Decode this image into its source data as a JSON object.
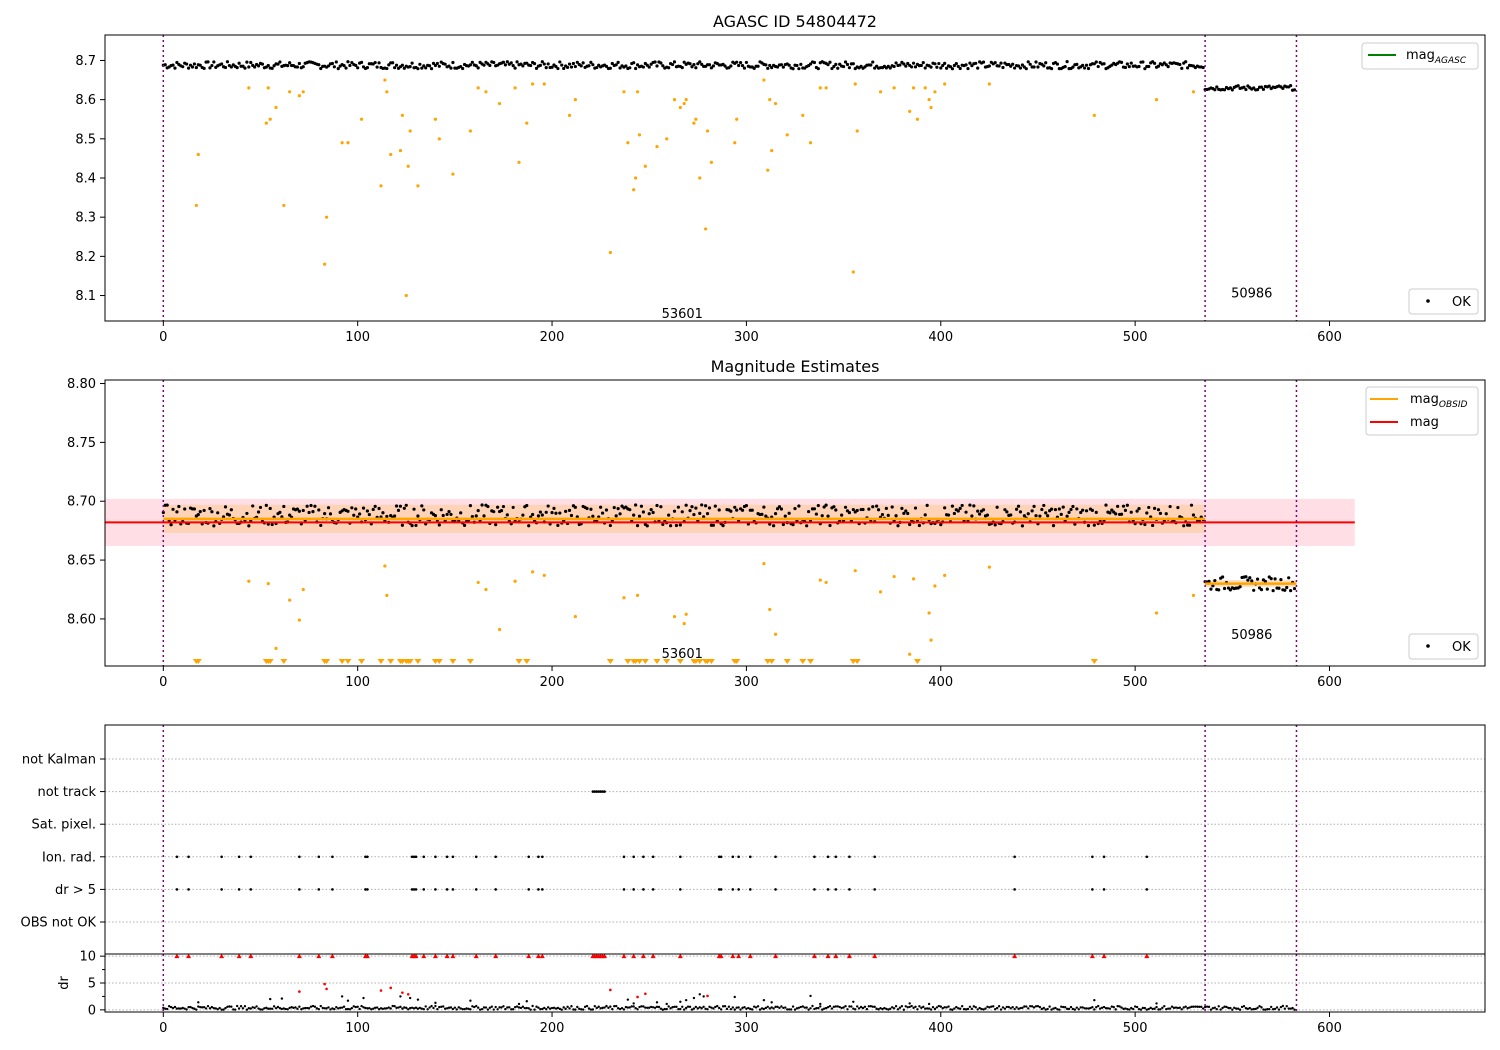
{
  "colors": {
    "ok_points": "#000000",
    "flagged_points": "#ffa500",
    "mag_agasc": "#008000",
    "mag": "#ff0000",
    "mag_obsid": "#ffa500",
    "obs_boundary": "#800080",
    "dr_flag": "#ff0000",
    "band_mag": "#ffc0cb",
    "band_obsid": "#ffcc99"
  },
  "chart_data": [
    {
      "type": "scatter",
      "title": "AGASC ID 54804472",
      "xlabel": "",
      "ylabel": "",
      "xlim": [
        -30,
        680
      ],
      "ylim": [
        8.035,
        8.765
      ],
      "xticks": [
        0,
        100,
        200,
        300,
        400,
        500,
        600
      ],
      "yticks": [
        8.1,
        8.2,
        8.3,
        8.4,
        8.5,
        8.6,
        8.7
      ],
      "grid": false,
      "legend": [
        {
          "label_main": "mag",
          "label_sub": "AGASC",
          "kind": "line",
          "color": "#008000",
          "placement": "upper right"
        },
        {
          "label_main": "OK",
          "label_sub": "",
          "kind": "point",
          "color": "#000000",
          "placement": "lower right"
        }
      ],
      "obs_boundaries": [
        0,
        536,
        583
      ],
      "obs_labels": [
        {
          "text": "53601",
          "x": 267,
          "y": 8.055
        },
        {
          "text": "50986",
          "x": 560,
          "y": 8.108
        }
      ],
      "series": [
        {
          "role": "ok",
          "segments": [
            {
              "x_start": 0,
              "x_end": 535,
              "center": 8.688,
              "spread": 0.009
            },
            {
              "x_start": 536,
              "x_end": 582,
              "center": 8.63,
              "spread": 0.006
            }
          ]
        },
        {
          "role": "flagged",
          "points": [
            [
              17,
              8.33
            ],
            [
              18,
              8.46
            ],
            [
              44,
              8.63
            ],
            [
              53,
              8.54
            ],
            [
              54,
              8.63
            ],
            [
              55,
              8.55
            ],
            [
              58,
              8.58
            ],
            [
              62,
              8.33
            ],
            [
              65,
              8.62
            ],
            [
              70,
              8.61
            ],
            [
              72,
              8.62
            ],
            [
              83,
              8.18
            ],
            [
              84,
              8.3
            ],
            [
              92,
              8.49
            ],
            [
              95,
              8.49
            ],
            [
              102,
              8.55
            ],
            [
              112,
              8.38
            ],
            [
              114,
              8.65
            ],
            [
              115,
              8.62
            ],
            [
              117,
              8.46
            ],
            [
              122,
              8.47
            ],
            [
              123,
              8.56
            ],
            [
              125,
              8.1
            ],
            [
              126,
              8.43
            ],
            [
              127,
              8.52
            ],
            [
              131,
              8.38
            ],
            [
              140,
              8.55
            ],
            [
              142,
              8.5
            ],
            [
              149,
              8.41
            ],
            [
              158,
              8.52
            ],
            [
              162,
              8.63
            ],
            [
              166,
              8.62
            ],
            [
              173,
              8.59
            ],
            [
              181,
              8.63
            ],
            [
              183,
              8.44
            ],
            [
              187,
              8.54
            ],
            [
              190,
              8.64
            ],
            [
              196,
              8.64
            ],
            [
              209,
              8.56
            ],
            [
              212,
              8.6
            ],
            [
              230,
              8.21
            ],
            [
              237,
              8.62
            ],
            [
              239,
              8.49
            ],
            [
              242,
              8.37
            ],
            [
              243,
              8.4
            ],
            [
              244,
              8.62
            ],
            [
              245,
              8.51
            ],
            [
              248,
              8.43
            ],
            [
              254,
              8.48
            ],
            [
              259,
              8.5
            ],
            [
              263,
              8.6
            ],
            [
              266,
              8.58
            ],
            [
              268,
              8.59
            ],
            [
              269,
              8.6
            ],
            [
              273,
              8.54
            ],
            [
              274,
              8.55
            ],
            [
              276,
              8.4
            ],
            [
              279,
              8.27
            ],
            [
              280,
              8.52
            ],
            [
              282,
              8.44
            ],
            [
              294,
              8.49
            ],
            [
              295,
              8.55
            ],
            [
              309,
              8.65
            ],
            [
              311,
              8.42
            ],
            [
              312,
              8.6
            ],
            [
              313,
              8.47
            ],
            [
              315,
              8.59
            ],
            [
              321,
              8.51
            ],
            [
              329,
              8.56
            ],
            [
              333,
              8.49
            ],
            [
              338,
              8.63
            ],
            [
              341,
              8.63
            ],
            [
              355,
              8.16
            ],
            [
              356,
              8.64
            ],
            [
              357,
              8.52
            ],
            [
              369,
              8.62
            ],
            [
              376,
              8.63
            ],
            [
              384,
              8.57
            ],
            [
              386,
              8.63
            ],
            [
              388,
              8.55
            ],
            [
              392,
              8.63
            ],
            [
              394,
              8.6
            ],
            [
              395,
              8.58
            ],
            [
              397,
              8.62
            ],
            [
              402,
              8.64
            ],
            [
              425,
              8.64
            ],
            [
              479,
              8.56
            ],
            [
              511,
              8.6
            ],
            [
              530,
              8.62
            ]
          ]
        }
      ]
    },
    {
      "type": "scatter",
      "title": "Magnitude Estimates",
      "xlabel": "",
      "ylabel": "",
      "xlim": [
        -30,
        680
      ],
      "ylim": [
        8.56,
        8.803
      ],
      "xticks": [
        0,
        100,
        200,
        300,
        400,
        500,
        600
      ],
      "yticks": [
        8.6,
        8.65,
        8.7,
        8.75,
        8.8
      ],
      "grid": false,
      "legend": [
        {
          "label_main": "mag",
          "label_sub": "OBSID",
          "kind": "line",
          "color": "#ffa500",
          "placement": "upper right"
        },
        {
          "label_main": "mag",
          "label_sub": "",
          "kind": "line",
          "color": "#ff0000",
          "placement": "upper right"
        },
        {
          "label_main": "OK",
          "label_sub": "",
          "kind": "point",
          "color": "#000000",
          "placement": "lower right"
        }
      ],
      "obs_boundaries": [
        0,
        536,
        583
      ],
      "obs_labels": [
        {
          "text": "53601",
          "x": 267,
          "y": 8.571
        },
        {
          "text": "50986",
          "x": 560,
          "y": 8.587
        }
      ],
      "mag_line": {
        "value": 8.682,
        "x_start": -30,
        "x_end": 613,
        "band": [
          8.662,
          8.702
        ]
      },
      "obsid_lines": [
        {
          "x_start": 0,
          "x_end": 536,
          "value": 8.685,
          "band": [
            8.673,
            8.697
          ]
        },
        {
          "x_start": 536,
          "x_end": 583,
          "value": 8.63,
          "band": [
            8.627,
            8.633
          ]
        }
      ],
      "series": [
        {
          "role": "ok",
          "segments": [
            {
              "x_start": 0,
              "x_end": 535,
              "center": 8.688,
              "spread": 0.009
            },
            {
              "x_start": 536,
              "x_end": 582,
              "center": 8.63,
              "spread": 0.006
            }
          ]
        },
        {
          "role": "flagged",
          "points": [
            [
              44,
              8.632
            ],
            [
              54,
              8.63
            ],
            [
              58,
              8.575
            ],
            [
              65,
              8.616
            ],
            [
              70,
              8.599
            ],
            [
              72,
              8.625
            ],
            [
              114,
              8.645
            ],
            [
              115,
              8.62
            ],
            [
              162,
              8.631
            ],
            [
              166,
              8.625
            ],
            [
              173,
              8.591
            ],
            [
              181,
              8.632
            ],
            [
              190,
              8.64
            ],
            [
              196,
              8.637
            ],
            [
              212,
              8.602
            ],
            [
              237,
              8.618
            ],
            [
              244,
              8.62
            ],
            [
              263,
              8.602
            ],
            [
              268,
              8.596
            ],
            [
              269,
              8.604
            ],
            [
              309,
              8.647
            ],
            [
              312,
              8.608
            ],
            [
              315,
              8.587
            ],
            [
              338,
              8.633
            ],
            [
              341,
              8.631
            ],
            [
              356,
              8.641
            ],
            [
              369,
              8.623
            ],
            [
              376,
              8.636
            ],
            [
              384,
              8.57
            ],
            [
              386,
              8.634
            ],
            [
              394,
              8.605
            ],
            [
              395,
              8.582
            ],
            [
              397,
              8.628
            ],
            [
              402,
              8.637
            ],
            [
              425,
              8.644
            ],
            [
              511,
              8.605
            ],
            [
              530,
              8.62
            ]
          ]
        },
        {
          "role": "below-range",
          "x": [
            17,
            18,
            53,
            54,
            55,
            62,
            83,
            84,
            92,
            95,
            102,
            112,
            117,
            122,
            123,
            125,
            126,
            127,
            131,
            140,
            142,
            149,
            158,
            183,
            187,
            230,
            239,
            242,
            243,
            245,
            248,
            254,
            259,
            266,
            273,
            274,
            276,
            279,
            280,
            282,
            294,
            295,
            311,
            313,
            321,
            329,
            333,
            355,
            357,
            388,
            479
          ]
        }
      ]
    },
    {
      "type": "scatter",
      "title": "",
      "xlabel": "",
      "ylabel": "",
      "xlim": [
        -30,
        680
      ],
      "categories": [
        "not Kalman",
        "not track",
        "Sat. pixel.",
        "Ion. rad.",
        "dr > 5",
        "OBS not OK"
      ],
      "obs_boundaries": [
        0,
        536,
        583
      ],
      "grid": true,
      "flags": {
        "not track": [
          221,
          222,
          223,
          224,
          225,
          226,
          227
        ],
        "Ion. rad.": [
          7,
          13,
          30,
          39,
          45,
          70,
          80,
          87,
          104,
          105,
          128,
          129,
          130,
          134,
          140,
          146,
          149,
          161,
          171,
          188,
          193,
          195,
          237,
          242,
          247,
          252,
          266,
          286,
          287,
          293,
          296,
          302,
          315,
          335,
          342,
          346,
          353,
          366,
          438,
          478,
          484,
          506
        ],
        "dr > 5": [
          7,
          13,
          30,
          39,
          45,
          70,
          80,
          87,
          104,
          105,
          128,
          129,
          130,
          134,
          140,
          146,
          149,
          161,
          171,
          188,
          193,
          195,
          237,
          242,
          247,
          252,
          266,
          286,
          287,
          293,
          296,
          302,
          315,
          335,
          342,
          346,
          353,
          366,
          438,
          478,
          484,
          506
        ]
      }
    },
    {
      "type": "scatter",
      "title": "",
      "xlabel": "",
      "ylabel": "dr",
      "xlim": [
        -30,
        680
      ],
      "ylim": [
        -0.4,
        10.4
      ],
      "xticks": [
        0,
        100,
        200,
        300,
        400,
        500,
        600
      ],
      "yticks": [
        0,
        5,
        10
      ],
      "grid": true,
      "obs_boundaries": [
        0,
        536,
        583
      ],
      "clipped_value": 10,
      "clipped_x": [
        7,
        13,
        30,
        39,
        45,
        70,
        80,
        87,
        104,
        105,
        128,
        129,
        130,
        134,
        140,
        146,
        149,
        161,
        171,
        188,
        193,
        195,
        221,
        222,
        223,
        224,
        225,
        226,
        227,
        237,
        242,
        247,
        252,
        266,
        286,
        287,
        293,
        296,
        302,
        315,
        335,
        342,
        346,
        353,
        366,
        438,
        478,
        484,
        506
      ],
      "ok_baseline": {
        "x_start": 0,
        "x_end": 582,
        "center": 0.3,
        "spread": 0.35
      },
      "flagged_points": [
        [
          70,
          3.4
        ],
        [
          83,
          4.8
        ],
        [
          84,
          3.9
        ],
        [
          112,
          3.6
        ],
        [
          117,
          4.1
        ],
        [
          123,
          3.2
        ],
        [
          126,
          2.9
        ],
        [
          230,
          3.7
        ],
        [
          244,
          2.4
        ],
        [
          248,
          3.0
        ],
        [
          280,
          2.6
        ]
      ],
      "scatter_points": [
        [
          18,
          1.4
        ],
        [
          55,
          2.0
        ],
        [
          61,
          2.1
        ],
        [
          92,
          2.5
        ],
        [
          95,
          1.7
        ],
        [
          103,
          2.2
        ],
        [
          122,
          2.5
        ],
        [
          127,
          2.2
        ],
        [
          131,
          1.9
        ],
        [
          140,
          1.3
        ],
        [
          158,
          1.7
        ],
        [
          183,
          1.1
        ],
        [
          187,
          1.6
        ],
        [
          239,
          1.9
        ],
        [
          242,
          1.2
        ],
        [
          254,
          1.4
        ],
        [
          259,
          1.1
        ],
        [
          266,
          1.5
        ],
        [
          269,
          1.8
        ],
        [
          273,
          2.2
        ],
        [
          276,
          2.9
        ],
        [
          278,
          2.5
        ],
        [
          294,
          2.4
        ],
        [
          309,
          1.8
        ],
        [
          313,
          1.4
        ],
        [
          333,
          2.6
        ],
        [
          338,
          1.1
        ],
        [
          355,
          1.5
        ],
        [
          384,
          1.2
        ],
        [
          394,
          1.1
        ],
        [
          479,
          1.8
        ],
        [
          511,
          1.2
        ]
      ]
    }
  ]
}
